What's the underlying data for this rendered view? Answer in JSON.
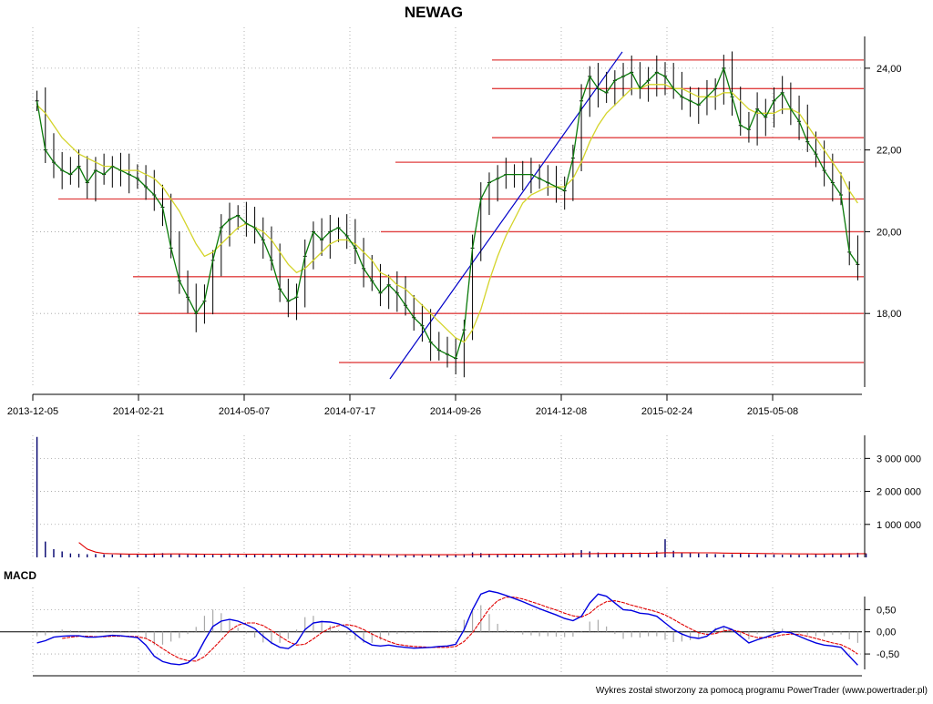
{
  "chart_data": [
    {
      "type": "line",
      "title": "NEWAG",
      "x_tick_labels": [
        "2013-12-05",
        "2014-02-21",
        "2014-05-07",
        "2014-07-17",
        "2014-09-26",
        "2014-12-08",
        "2015-02-24",
        "2015-05-08"
      ],
      "y_tick_labels": [
        "18,00",
        "20,00",
        "22,00",
        "24,00"
      ],
      "ylim": [
        16.2,
        25.0
      ],
      "grid": true,
      "series": [
        {
          "values": [
            23.2,
            22.0,
            21.7,
            21.5,
            21.4,
            21.6,
            21.2,
            21.5,
            21.4,
            21.6,
            21.5,
            21.4,
            21.3,
            21.1,
            20.9,
            20.6,
            19.6,
            18.8,
            18.4,
            18.0,
            18.3,
            19.3,
            20.1,
            20.3,
            20.4,
            20.2,
            20.1,
            19.8,
            19.3,
            18.6,
            18.3,
            18.4,
            19.4,
            20.0,
            19.8,
            20.0,
            20.1,
            19.9,
            19.6,
            19.1,
            18.8,
            18.5,
            18.7,
            18.5,
            18.2,
            17.9,
            17.7,
            17.3,
            17.1,
            17.0,
            16.9,
            17.6,
            19.6,
            20.8,
            21.2,
            21.3,
            21.4,
            21.4,
            21.4,
            21.4,
            21.3,
            21.2,
            21.1,
            21.0,
            21.8,
            23.2,
            23.8,
            23.5,
            23.4,
            23.7,
            23.8,
            23.9,
            23.5,
            23.7,
            23.9,
            23.8,
            23.5,
            23.3,
            23.2,
            23.1,
            23.3,
            23.5,
            24.0,
            23.3,
            22.6,
            22.5,
            23.0,
            22.8,
            23.2,
            23.4,
            23.0,
            22.7,
            22.2,
            21.9,
            21.5,
            21.2,
            20.9,
            19.5,
            19.2
          ],
          "color": "#0a7a0a"
        },
        {
          "values": [
            23.1,
            22.9,
            22.6,
            22.3,
            22.1,
            21.9,
            21.8,
            21.7,
            21.6,
            21.6,
            21.5,
            21.5,
            21.5,
            21.4,
            21.3,
            21.1,
            20.8,
            20.5,
            20.1,
            19.7,
            19.4,
            19.5,
            19.7,
            19.9,
            20.1,
            20.2,
            20.1,
            20.0,
            19.8,
            19.5,
            19.2,
            19.0,
            19.1,
            19.3,
            19.5,
            19.7,
            19.8,
            19.8,
            19.7,
            19.5,
            19.3,
            19.0,
            18.9,
            18.7,
            18.6,
            18.4,
            18.2,
            18.0,
            17.8,
            17.6,
            17.4,
            17.3,
            17.6,
            18.1,
            18.8,
            19.4,
            19.9,
            20.3,
            20.7,
            20.9,
            21.0,
            21.1,
            21.1,
            21.1,
            21.3,
            21.7,
            22.2,
            22.6,
            22.9,
            23.1,
            23.3,
            23.5,
            23.5,
            23.6,
            23.6,
            23.6,
            23.5,
            23.5,
            23.4,
            23.3,
            23.3,
            23.3,
            23.4,
            23.4,
            23.2,
            23.0,
            22.9,
            22.9,
            22.9,
            23.0,
            23.0,
            22.9,
            22.6,
            22.3,
            22.0,
            21.7,
            21.4,
            21.0,
            20.7
          ],
          "color": "#d4d42a"
        }
      ]
    },
    {
      "type": "bar",
      "y_tick_labels": [
        "1 000 000",
        "2 000 000",
        "3 000 000"
      ],
      "ylim": [
        0,
        3700000
      ],
      "grid": true,
      "values": [
        3650000,
        480000,
        250000,
        180000,
        120000,
        110000,
        95000,
        100000,
        90000,
        85000,
        110000,
        95000,
        90000,
        100000,
        120000,
        130000,
        110000,
        100000,
        95000,
        90000,
        85000,
        80000,
        100000,
        120000,
        95000,
        90000,
        80000,
        85000,
        90000,
        110000,
        100000,
        95000,
        85000,
        80000,
        110000,
        95000,
        90000,
        85000,
        80000,
        75000,
        70000,
        80000,
        85000,
        75000,
        80000,
        70000,
        75000,
        90000,
        85000,
        80000,
        90000,
        100000,
        150000,
        130000,
        110000,
        100000,
        95000,
        90000,
        85000,
        90000,
        95000,
        100000,
        110000,
        120000,
        140000,
        220000,
        180000,
        150000,
        130000,
        120000,
        130000,
        140000,
        150000,
        130000,
        180000,
        550000,
        200000,
        150000,
        130000,
        120000,
        110000,
        100000,
        90000,
        95000,
        110000,
        100000,
        95000,
        90000,
        85000,
        80000,
        85000,
        80000,
        90000,
        95000,
        100000,
        110000,
        120000,
        130000,
        140000,
        120000
      ],
      "average": [
        null,
        null,
        null,
        null,
        null,
        450000,
        250000,
        160000,
        120000,
        110000,
        105000,
        100000,
        100000,
        98000,
        100000,
        102000,
        104000,
        104000,
        102000,
        100000,
        98000,
        96000,
        95000,
        96000,
        96000,
        95000,
        94000,
        94000,
        94000,
        95000,
        95000,
        94000,
        93000,
        92000,
        93000,
        93000,
        92000,
        91000,
        90000,
        88000,
        86000,
        85000,
        84000,
        82000,
        81000,
        80000,
        79000,
        79000,
        80000,
        80000,
        81000,
        83000,
        86000,
        88000,
        90000,
        92000,
        93000,
        94000,
        94000,
        95000,
        96000,
        97000,
        99000,
        101000,
        105000,
        110000,
        113000,
        116000,
        118000,
        119000,
        120000,
        121000,
        122000,
        123000,
        130000,
        140000,
        142000,
        142000,
        141000,
        139000,
        137000,
        134000,
        131000,
        128000,
        126000,
        123000,
        120000,
        117000,
        114000,
        111000,
        109000,
        106000,
        104000,
        103000,
        103000,
        104000,
        106000,
        108000,
        111000,
        113000
      ],
      "bar_color": "#00006e",
      "average_color": "#e00000"
    },
    {
      "type": "line",
      "title": "MACD",
      "y_tick_labels": [
        "-0,50",
        "0,00",
        "0,50"
      ],
      "ylim": [
        -0.95,
        1.0
      ],
      "grid": true,
      "series": [
        {
          "values": [
            -0.25,
            -0.2,
            -0.12,
            -0.1,
            -0.09,
            -0.09,
            -0.12,
            -0.12,
            -0.1,
            -0.08,
            -0.09,
            -0.11,
            -0.13,
            -0.3,
            -0.55,
            -0.67,
            -0.72,
            -0.74,
            -0.7,
            -0.55,
            -0.2,
            0.12,
            0.24,
            0.28,
            0.24,
            0.16,
            0.07,
            -0.1,
            -0.25,
            -0.35,
            -0.38,
            -0.25,
            0.05,
            0.2,
            0.23,
            0.22,
            0.18,
            0.1,
            -0.05,
            -0.2,
            -0.3,
            -0.32,
            -0.3,
            -0.33,
            -0.35,
            -0.37,
            -0.36,
            -0.35,
            -0.33,
            -0.32,
            -0.28,
            0.05,
            0.5,
            0.85,
            0.92,
            0.88,
            0.82,
            0.75,
            0.68,
            0.6,
            0.52,
            0.45,
            0.38,
            0.3,
            0.25,
            0.35,
            0.65,
            0.85,
            0.8,
            0.65,
            0.5,
            0.48,
            0.42,
            0.4,
            0.35,
            0.2,
            0.05,
            -0.05,
            -0.12,
            -0.15,
            -0.1,
            0.05,
            0.12,
            0.05,
            -0.1,
            -0.25,
            -0.18,
            -0.12,
            -0.05,
            0.0,
            -0.02,
            -0.1,
            -0.18,
            -0.25,
            -0.3,
            -0.32,
            -0.35,
            -0.55,
            -0.75
          ],
          "color": "#0000e0"
        },
        {
          "values": [
            null,
            null,
            null,
            -0.15,
            -0.12,
            -0.1,
            -0.1,
            -0.11,
            -0.11,
            -0.1,
            -0.1,
            -0.1,
            -0.11,
            -0.15,
            -0.25,
            -0.38,
            -0.5,
            -0.6,
            -0.65,
            -0.66,
            -0.56,
            -0.38,
            -0.18,
            0.02,
            0.15,
            0.2,
            0.2,
            0.14,
            0.03,
            -0.1,
            -0.22,
            -0.3,
            -0.28,
            -0.16,
            -0.02,
            0.08,
            0.14,
            0.16,
            0.13,
            0.05,
            -0.05,
            -0.14,
            -0.22,
            -0.28,
            -0.31,
            -0.33,
            -0.34,
            -0.35,
            -0.35,
            -0.35,
            -0.33,
            -0.22,
            -0.02,
            0.25,
            0.52,
            0.7,
            0.78,
            0.78,
            0.74,
            0.68,
            0.62,
            0.55,
            0.49,
            0.42,
            0.36,
            0.33,
            0.42,
            0.58,
            0.68,
            0.7,
            0.66,
            0.6,
            0.55,
            0.5,
            0.45,
            0.38,
            0.28,
            0.17,
            0.07,
            -0.02,
            -0.06,
            -0.04,
            0.02,
            0.04,
            0.0,
            -0.08,
            -0.13,
            -0.13,
            -0.11,
            -0.07,
            -0.05,
            -0.06,
            -0.1,
            -0.15,
            -0.2,
            -0.25,
            -0.29,
            -0.38,
            -0.5
          ],
          "color": "#e00000"
        }
      ],
      "histogram_values": [
        -0.1,
        -0.08,
        -0.02,
        0.05,
        0.03,
        0.01,
        -0.02,
        -0.01,
        0.01,
        0.02,
        0.01,
        -0.01,
        -0.02,
        -0.15,
        -0.3,
        -0.29,
        -0.22,
        -0.14,
        -0.05,
        0.11,
        0.36,
        0.5,
        0.42,
        0.26,
        0.09,
        -0.04,
        -0.13,
        -0.24,
        -0.28,
        -0.25,
        -0.16,
        0.05,
        0.33,
        0.36,
        0.25,
        0.14,
        0.04,
        -0.06,
        -0.18,
        -0.25,
        -0.25,
        -0.18,
        -0.08,
        -0.05,
        -0.04,
        -0.04,
        -0.02,
        0.0,
        0.02,
        0.03,
        0.05,
        0.27,
        0.52,
        0.6,
        0.4,
        0.18,
        0.04,
        -0.03,
        -0.06,
        -0.08,
        -0.1,
        -0.1,
        -0.11,
        -0.12,
        -0.11,
        0.02,
        0.23,
        0.27,
        0.12,
        -0.05,
        -0.16,
        -0.12,
        -0.13,
        -0.1,
        -0.1,
        -0.18,
        -0.23,
        -0.22,
        -0.19,
        -0.13,
        -0.04,
        0.09,
        0.1,
        0.01,
        -0.1,
        -0.17,
        -0.05,
        0.01,
        0.06,
        0.07,
        0.03,
        -0.04,
        -0.08,
        -0.1,
        -0.1,
        -0.07,
        -0.06,
        -0.17,
        -0.25
      ],
      "histogram_color": "#a8a8a8"
    }
  ],
  "credit": "Wykres został stworzony za pomocą programu PowerTrader (www.powertrader.pl)",
  "colors": {
    "support_line": "#e04040",
    "trend_line": "#0000c8",
    "candle": "#000000",
    "grid": "#a0a0a0"
  }
}
